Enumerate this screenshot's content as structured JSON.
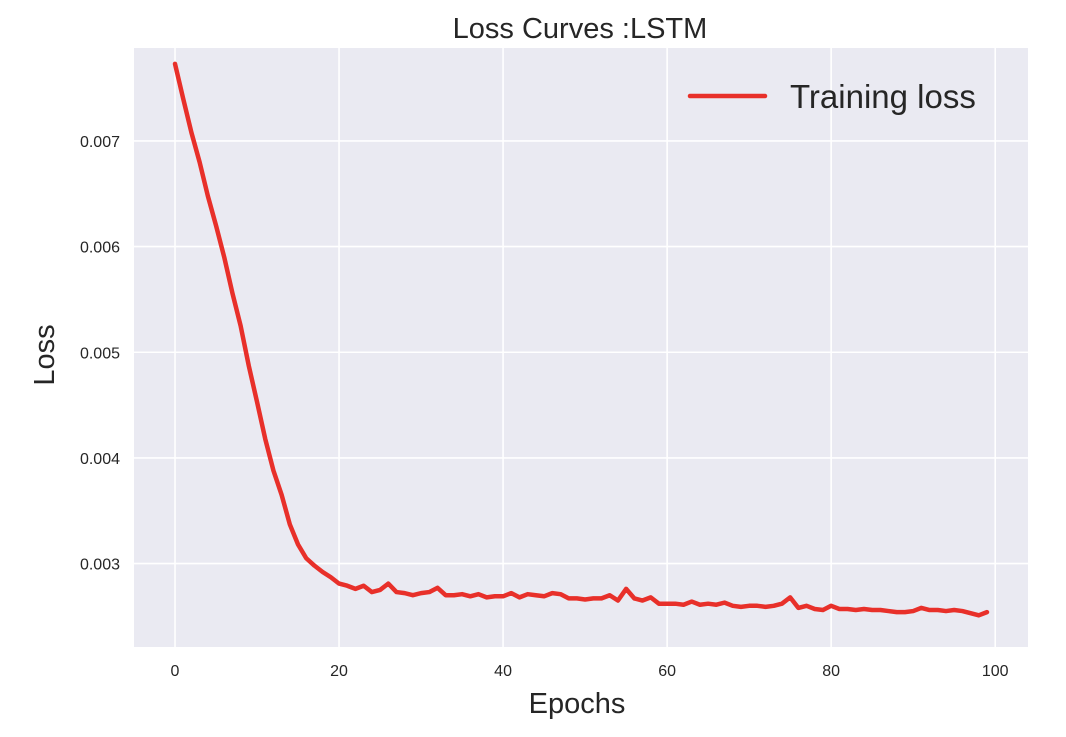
{
  "chart_data": {
    "type": "line",
    "title": "Loss Curves :LSTM",
    "xlabel": "Epochs",
    "ylabel": "Loss",
    "xlim": [
      -5,
      104
    ],
    "ylim": [
      0.00221,
      0.00788
    ],
    "xticks": [
      0,
      20,
      40,
      60,
      80,
      100
    ],
    "yticks": [
      0.003,
      0.004,
      0.005,
      0.006,
      0.007
    ],
    "xtick_labels": [
      "0",
      "20",
      "40",
      "60",
      "80",
      "100"
    ],
    "ytick_labels": [
      "0.003",
      "0.004",
      "0.005",
      "0.006",
      "0.007"
    ],
    "grid": true,
    "legend": {
      "position": "top-right",
      "entries": [
        "Training loss"
      ]
    },
    "series": [
      {
        "name": "Training loss",
        "color": "#e8302a",
        "x": [
          0,
          1,
          2,
          3,
          4,
          5,
          6,
          7,
          8,
          9,
          10,
          11,
          12,
          13,
          14,
          15,
          16,
          17,
          18,
          19,
          20,
          21,
          22,
          23,
          24,
          25,
          26,
          27,
          28,
          29,
          30,
          31,
          32,
          33,
          34,
          35,
          36,
          37,
          38,
          39,
          40,
          41,
          42,
          43,
          44,
          45,
          46,
          47,
          48,
          49,
          50,
          51,
          52,
          53,
          54,
          55,
          56,
          57,
          58,
          59,
          60,
          61,
          62,
          63,
          64,
          65,
          66,
          67,
          68,
          69,
          70,
          71,
          72,
          73,
          74,
          75,
          76,
          77,
          78,
          79,
          80,
          81,
          82,
          83,
          84,
          85,
          86,
          87,
          88,
          89,
          90,
          91,
          92,
          93,
          94,
          95,
          96,
          97,
          98,
          99
        ],
        "values": [
          0.00773,
          0.0074,
          0.00708,
          0.0068,
          0.00648,
          0.0062,
          0.0059,
          0.00556,
          0.00525,
          0.00487,
          0.00453,
          0.00418,
          0.00388,
          0.00365,
          0.00337,
          0.00318,
          0.00305,
          0.00298,
          0.00292,
          0.00287,
          0.00281,
          0.00279,
          0.00276,
          0.00279,
          0.00273,
          0.00275,
          0.00281,
          0.00273,
          0.00272,
          0.0027,
          0.00272,
          0.00273,
          0.00277,
          0.0027,
          0.0027,
          0.00271,
          0.00269,
          0.00271,
          0.00268,
          0.00269,
          0.00269,
          0.00272,
          0.00268,
          0.00271,
          0.0027,
          0.00269,
          0.00272,
          0.00271,
          0.00267,
          0.00267,
          0.00266,
          0.00267,
          0.00267,
          0.0027,
          0.00265,
          0.00276,
          0.00267,
          0.00265,
          0.00268,
          0.00262,
          0.00262,
          0.00262,
          0.00261,
          0.00264,
          0.00261,
          0.00262,
          0.00261,
          0.00263,
          0.0026,
          0.00259,
          0.0026,
          0.0026,
          0.00259,
          0.0026,
          0.00262,
          0.00268,
          0.00258,
          0.0026,
          0.00257,
          0.00256,
          0.0026,
          0.00257,
          0.00257,
          0.00256,
          0.00257,
          0.00256,
          0.00256,
          0.00255,
          0.00254,
          0.00254,
          0.00255,
          0.00258,
          0.00256,
          0.00256,
          0.00255,
          0.00256,
          0.00255,
          0.00253,
          0.00251,
          0.00254
        ]
      }
    ]
  }
}
